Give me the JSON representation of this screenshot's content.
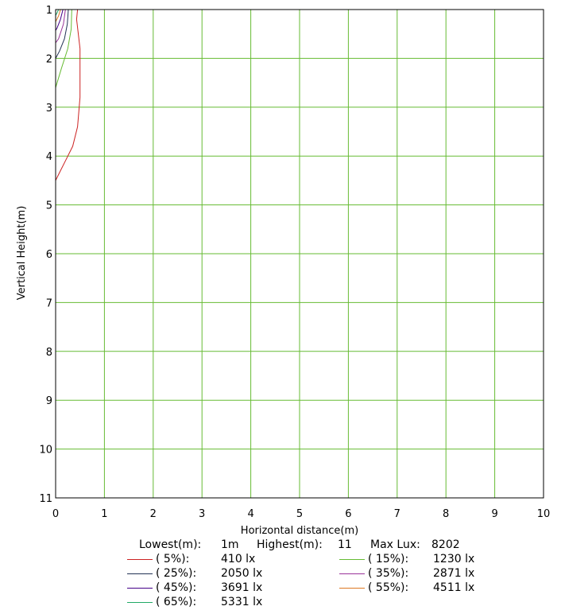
{
  "chart_data": {
    "type": "line",
    "xlabel": "Horizontal distance(m)",
    "ylabel": "Vertical Height(m)",
    "xlim": [
      0,
      10
    ],
    "ylim": [
      1,
      11
    ],
    "y_inverted": true,
    "grid": true,
    "grid_color": "#66bb33",
    "x_ticks": [
      "0",
      "1",
      "2",
      "3",
      "4",
      "5",
      "6",
      "7",
      "8",
      "9",
      "10"
    ],
    "y_ticks": [
      "1",
      "2",
      "3",
      "4",
      "5",
      "6",
      "7",
      "8",
      "9",
      "10",
      "11"
    ],
    "series": [
      {
        "name": "( 5%):",
        "value_label": "410 lx",
        "color": "#cc2222",
        "points": [
          [
            0.45,
            1.0
          ],
          [
            0.43,
            1.2
          ],
          [
            0.5,
            1.8
          ],
          [
            0.5,
            2.8
          ],
          [
            0.45,
            3.4
          ],
          [
            0.35,
            3.8
          ],
          [
            0.2,
            4.1
          ],
          [
            0.1,
            4.3
          ],
          [
            0.0,
            4.5
          ]
        ]
      },
      {
        "name": "( 15%):",
        "value_label": "1230 lx",
        "color": "#66bb33",
        "points": [
          [
            0.33,
            1.0
          ],
          [
            0.32,
            1.4
          ],
          [
            0.25,
            1.8
          ],
          [
            0.12,
            2.2
          ],
          [
            0.0,
            2.6
          ]
        ]
      },
      {
        "name": "( 25%):",
        "value_label": "2050 lx",
        "color": "#223355",
        "points": [
          [
            0.26,
            1.0
          ],
          [
            0.24,
            1.3
          ],
          [
            0.18,
            1.6
          ],
          [
            0.08,
            1.85
          ],
          [
            0.0,
            2.0
          ]
        ]
      },
      {
        "name": "( 35%):",
        "value_label": "2871 lx",
        "color": "#993399",
        "points": [
          [
            0.2,
            1.0
          ],
          [
            0.16,
            1.3
          ],
          [
            0.06,
            1.6
          ],
          [
            0.0,
            1.68
          ]
        ]
      },
      {
        "name": "( 45%):",
        "value_label": "3691 lx",
        "color": "#440088",
        "points": [
          [
            0.15,
            1.0
          ],
          [
            0.1,
            1.2
          ],
          [
            0.03,
            1.38
          ],
          [
            0.0,
            1.43
          ]
        ]
      },
      {
        "name": "( 55%):",
        "value_label": "4511 lx",
        "color": "#dd7722",
        "points": [
          [
            0.1,
            1.0
          ],
          [
            0.06,
            1.13
          ],
          [
            0.0,
            1.25
          ]
        ]
      },
      {
        "name": "( 65%):",
        "value_label": "5331 lx",
        "color": "#22aa66",
        "points": [
          [
            0.06,
            1.0
          ],
          [
            0.03,
            1.07
          ],
          [
            0.0,
            1.12
          ]
        ]
      }
    ]
  },
  "info": {
    "lowest_label": "Lowest(m):",
    "lowest_value": "1m",
    "highest_label": "Highest(m):",
    "highest_value": "11",
    "maxlux_label": "Max Lux:",
    "maxlux_value": "8202"
  }
}
